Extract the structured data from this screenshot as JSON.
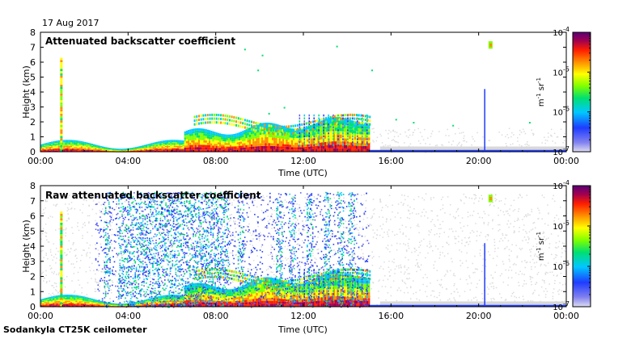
{
  "date_label": "17 Aug 2017",
  "footer_label": "Sodankyla CT25K ceilometer",
  "colors": {
    "scale": [
      "#dcdcdc",
      "#6060f0",
      "#1e3cff",
      "#00c8ff",
      "#00e070",
      "#80ff00",
      "#ffff00",
      "#ff9000",
      "#ff1e00",
      "#a00050",
      "#5a0078"
    ],
    "axis": "#000000",
    "background": "#ffffff"
  },
  "chart_data": [
    {
      "type": "heatmap",
      "title": "Attenuated backscatter coefficient",
      "xlabel": "Time (UTC)",
      "ylabel": "Height (km)",
      "xlim": [
        "00:00",
        "24:00"
      ],
      "x_ticks": [
        "00:00",
        "04:00",
        "08:00",
        "12:00",
        "16:00",
        "20:00",
        "00:00"
      ],
      "ylim": [
        0,
        8
      ],
      "y_ticks": [
        "0",
        "1",
        "2",
        "3",
        "4",
        "5",
        "6",
        "7",
        "8"
      ],
      "colorbar": {
        "scale": "log",
        "range": [
          1e-07,
          0.0001
        ],
        "ticks": [
          "10-7",
          "10-6",
          "10-5",
          "10-4"
        ],
        "unit": "m-1 sr-1"
      }
    },
    {
      "type": "heatmap",
      "title": "Raw attenuated backscatter coefficient",
      "xlabel": "Time (UTC)",
      "ylabel": "Height (km)",
      "xlim": [
        "00:00",
        "24:00"
      ],
      "x_ticks": [
        "00:00",
        "04:00",
        "08:00",
        "12:00",
        "16:00",
        "20:00",
        "00:00"
      ],
      "ylim": [
        0,
        8
      ],
      "y_ticks": [
        "0",
        "1",
        "2",
        "3",
        "4",
        "5",
        "6",
        "7",
        "8"
      ],
      "colorbar": {
        "scale": "log",
        "range": [
          1e-07,
          0.0001
        ],
        "ticks": [
          "10-7",
          "10-6",
          "10-5",
          "10-4"
        ],
        "unit": "m-1 sr-1"
      }
    }
  ]
}
